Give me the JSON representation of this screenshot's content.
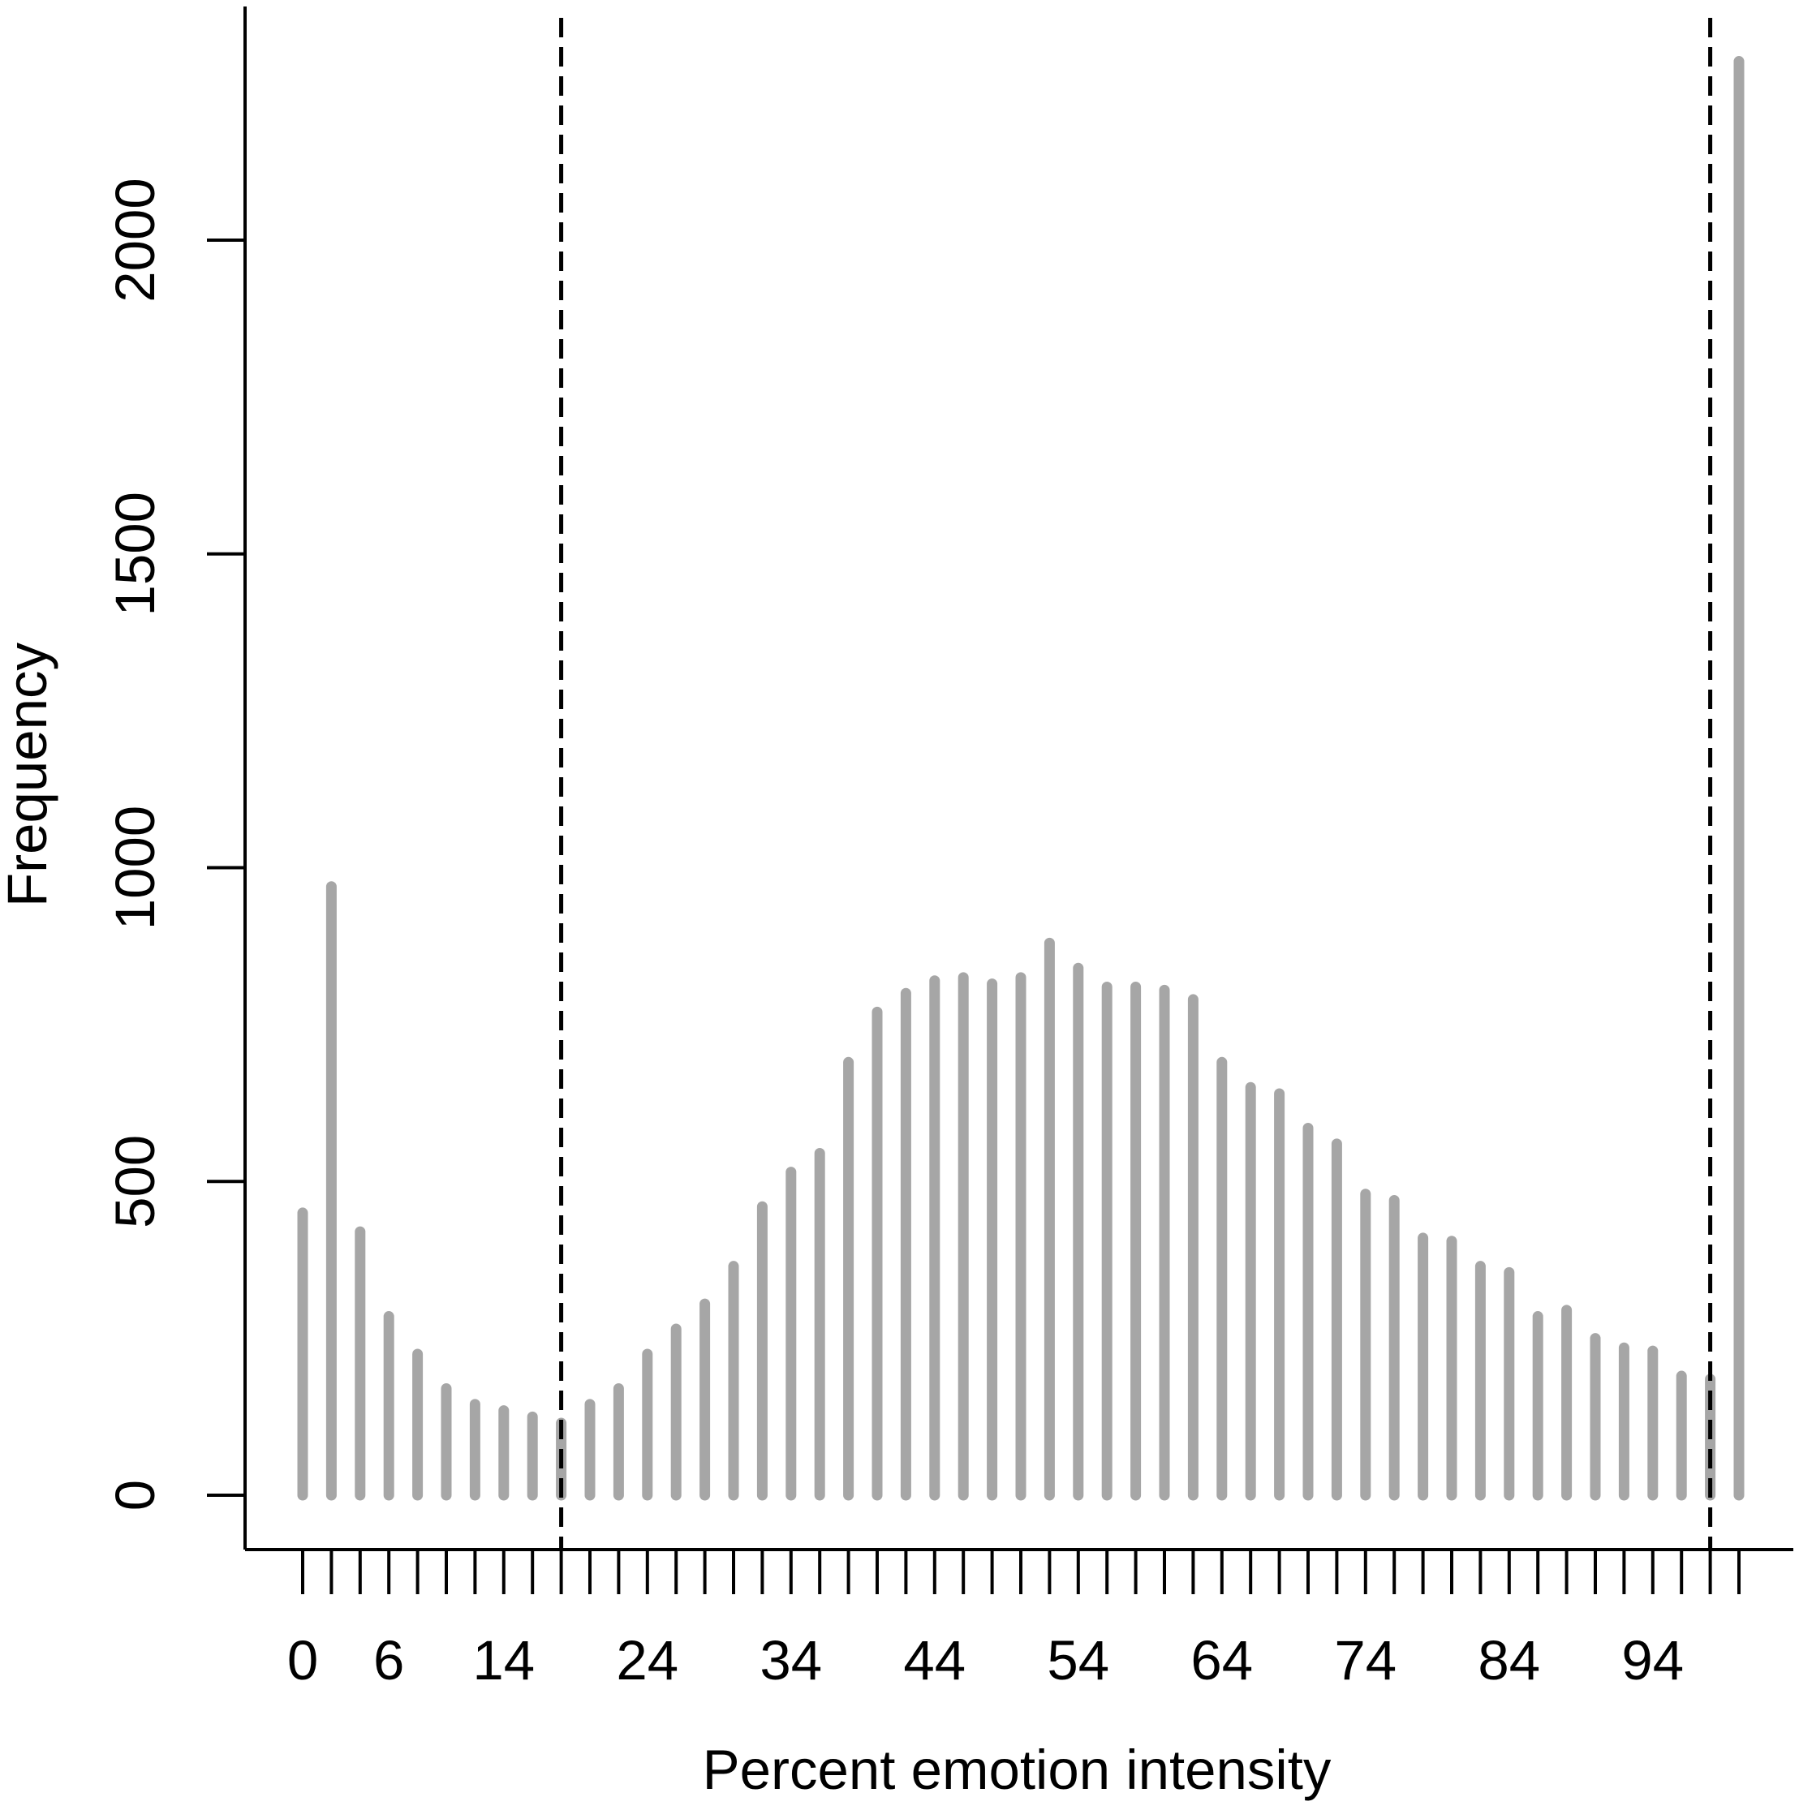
{
  "chart_data": {
    "type": "bar",
    "title": "",
    "xlabel": "Percent emotion intensity",
    "ylabel": "Frequency",
    "x": [
      0,
      2,
      4,
      6,
      8,
      10,
      12,
      14,
      16,
      18,
      20,
      22,
      24,
      26,
      28,
      30,
      32,
      34,
      36,
      38,
      40,
      42,
      44,
      46,
      48,
      50,
      52,
      54,
      56,
      58,
      60,
      62,
      64,
      66,
      68,
      70,
      72,
      74,
      76,
      78,
      80,
      82,
      84,
      86,
      88,
      90,
      92,
      94,
      96,
      98,
      100
    ],
    "values": [
      450,
      970,
      420,
      285,
      225,
      170,
      145,
      135,
      125,
      115,
      145,
      170,
      225,
      265,
      305,
      365,
      460,
      515,
      545,
      690,
      770,
      800,
      820,
      825,
      815,
      825,
      880,
      840,
      810,
      810,
      805,
      790,
      690,
      650,
      640,
      585,
      560,
      480,
      470,
      410,
      405,
      365,
      355,
      285,
      295,
      250,
      235,
      230,
      190,
      185,
      2285
    ],
    "x_tick_labels": [
      "0",
      "6",
      "14",
      "24",
      "34",
      "44",
      "54",
      "64",
      "74",
      "84",
      "94"
    ],
    "x_tick_label_values": [
      0,
      6,
      14,
      24,
      34,
      44,
      54,
      64,
      74,
      84,
      94
    ],
    "y_ticks": [
      0,
      500,
      1000,
      1500,
      2000
    ],
    "ylim": [
      0,
      2285
    ],
    "cutoff_lines": [
      18,
      98
    ],
    "bar_color": "#a6a6a6",
    "cutoff_line_color": "#000000",
    "grid": false,
    "legend": "none"
  }
}
